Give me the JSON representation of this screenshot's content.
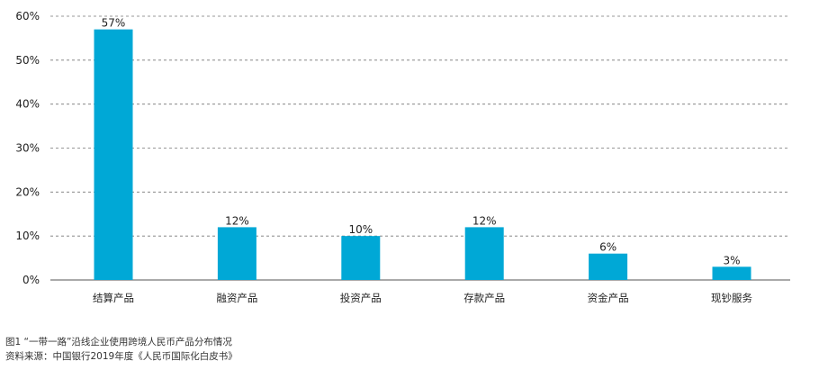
{
  "chart_data": {
    "type": "bar",
    "categories": [
      "结算产品",
      "融资产品",
      "投资产品",
      "存款产品",
      "资金产品",
      "现钞服务"
    ],
    "values": [
      57,
      12,
      10,
      12,
      6,
      3
    ],
    "value_labels": [
      "57%",
      "12%",
      "10%",
      "12%",
      "6%",
      "3%"
    ],
    "yticks": [
      "0%",
      "10%",
      "20%",
      "30%",
      "40%",
      "50%",
      "60%"
    ],
    "ylim": [
      0,
      60
    ],
    "grid": "dashed horizontal",
    "bar_color": "#00a8d6"
  },
  "caption": {
    "figure": "图1 “一带一路”沿线企业使用跨境人民币产品分布情况",
    "source": "资料来源：中国银行2019年度《人民币国际化白皮书》"
  }
}
